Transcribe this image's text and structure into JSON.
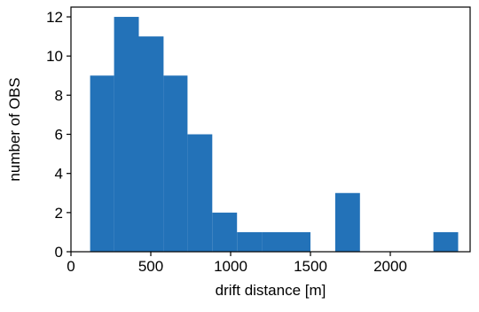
{
  "chart_data": {
    "type": "histogram",
    "title": "",
    "xlabel": "drift distance [m]",
    "ylabel": "number of OBS",
    "xlim": [
      0,
      2500
    ],
    "ylim": [
      0,
      12.5
    ],
    "x_ticks": [
      0,
      500,
      1000,
      1500,
      2000
    ],
    "y_ticks": [
      0,
      2,
      4,
      6,
      8,
      10,
      12
    ],
    "bar_color": "#2372b8",
    "grid": false,
    "legend": "none",
    "bins": [
      {
        "x0": 120,
        "x1": 270,
        "count": 9
      },
      {
        "x0": 270,
        "x1": 425,
        "count": 12
      },
      {
        "x0": 425,
        "x1": 580,
        "count": 11
      },
      {
        "x0": 580,
        "x1": 730,
        "count": 9
      },
      {
        "x0": 730,
        "x1": 885,
        "count": 6
      },
      {
        "x0": 885,
        "x1": 1040,
        "count": 2
      },
      {
        "x0": 1040,
        "x1": 1195,
        "count": 1
      },
      {
        "x0": 1195,
        "x1": 1350,
        "count": 1
      },
      {
        "x0": 1350,
        "x1": 1500,
        "count": 1
      },
      {
        "x0": 1500,
        "x1": 1655,
        "count": 0
      },
      {
        "x0": 1655,
        "x1": 1810,
        "count": 3
      },
      {
        "x0": 1810,
        "x1": 1965,
        "count": 0
      },
      {
        "x0": 1965,
        "x1": 2115,
        "count": 0
      },
      {
        "x0": 2115,
        "x1": 2270,
        "count": 0
      },
      {
        "x0": 2270,
        "x1": 2425,
        "count": 1
      }
    ]
  }
}
